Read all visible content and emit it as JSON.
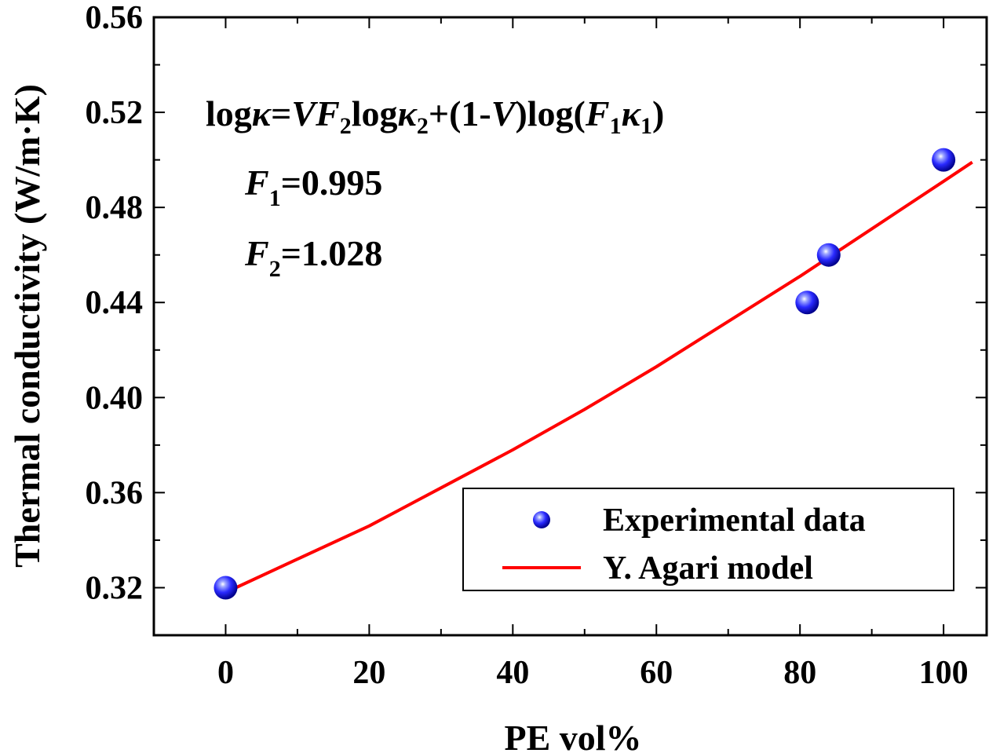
{
  "chart_data": {
    "type": "scatter",
    "xlabel": "PE vol%",
    "ylabel": "Thermal conductivity (W/m·K)",
    "xlim": [
      -10,
      106
    ],
    "ylim": [
      0.3,
      0.56
    ],
    "xticks": [
      0,
      20,
      40,
      60,
      80,
      100
    ],
    "yticks": [
      0.32,
      0.36,
      0.4,
      0.44,
      0.48,
      0.52,
      0.56
    ],
    "xtick_labels": [
      "0",
      "20",
      "40",
      "60",
      "80",
      "100"
    ],
    "ytick_labels": [
      "0.32",
      "0.36",
      "0.40",
      "0.44",
      "0.48",
      "0.52",
      "0.56"
    ],
    "series": [
      {
        "name": "Experimental data",
        "kind": "points",
        "color": "#1a1aff",
        "x": [
          0,
          81,
          84,
          100
        ],
        "y": [
          0.32,
          0.44,
          0.46,
          0.5
        ]
      },
      {
        "name": "Y. Agari model",
        "kind": "line",
        "color": "#ff0000",
        "x": [
          0,
          10,
          20,
          30,
          40,
          50,
          60,
          70,
          80,
          90,
          100,
          104
        ],
        "y": [
          0.318,
          0.332,
          0.346,
          0.362,
          0.378,
          0.395,
          0.413,
          0.432,
          0.451,
          0.471,
          0.491,
          0.499
        ]
      }
    ],
    "annotations": {
      "equation": {
        "log1": "log",
        "kappa": "κ",
        "eq": "=",
        "V": "V",
        "F": "F",
        "sub2": "2",
        "log2": "log",
        "kappa2": "κ",
        "plus": "+(1-",
        "V2": "V",
        "close": ")log(",
        "F1": "F",
        "sub1": "1",
        "kappa1": "κ",
        "sub1b": "1",
        "end": ")"
      },
      "f1": {
        "symbol": "F",
        "sub": "1",
        "value": "=0.995"
      },
      "f2": {
        "symbol": "F",
        "sub": "2",
        "value": "=1.028"
      }
    },
    "legend": {
      "position": "bottom-right",
      "entries": [
        "Experimental data",
        "Y. Agari model"
      ]
    }
  }
}
